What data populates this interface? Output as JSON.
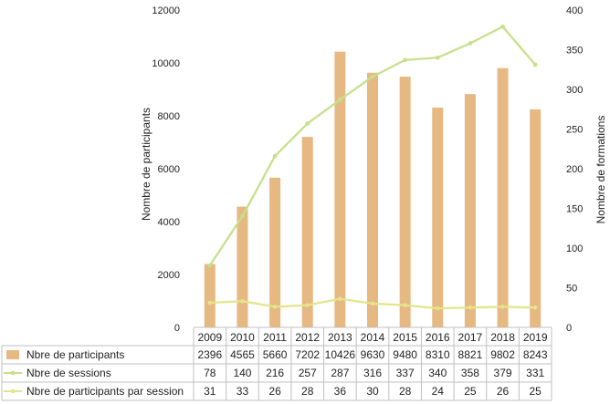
{
  "chart_data": {
    "type": "bar",
    "categories": [
      "2009",
      "2010",
      "2011",
      "2012",
      "2013",
      "2014",
      "2015",
      "2016",
      "2017",
      "2018",
      "2019"
    ],
    "y_left": {
      "label": "Nombre de participants",
      "ticks": [
        0,
        2000,
        4000,
        6000,
        8000,
        10000,
        12000
      ],
      "range": [
        0,
        12000
      ]
    },
    "y_right": {
      "label": "Nombre de formations",
      "ticks": [
        0,
        50,
        100,
        150,
        200,
        250,
        300,
        350,
        400
      ],
      "range": [
        0,
        400
      ]
    },
    "series": [
      {
        "name": "Nbre de participants",
        "kind": "bar",
        "axis": "left",
        "color": "#E6B882",
        "values": [
          2396,
          4565,
          5660,
          7202,
          10426,
          9630,
          9480,
          8310,
          8821,
          9802,
          8243
        ]
      },
      {
        "name": "Nbre de sessions",
        "kind": "line",
        "axis": "right",
        "color": "#C5E08A",
        "values": [
          78,
          140,
          216,
          257,
          287,
          316,
          337,
          340,
          358,
          379,
          331
        ]
      },
      {
        "name": "Nbre de participants par session",
        "kind": "line",
        "axis": "right",
        "color": "#E3E58C",
        "values": [
          31,
          33,
          26,
          28,
          36,
          30,
          28,
          24,
          25,
          26,
          25
        ]
      }
    ],
    "grid": false,
    "legend": "data-table"
  }
}
